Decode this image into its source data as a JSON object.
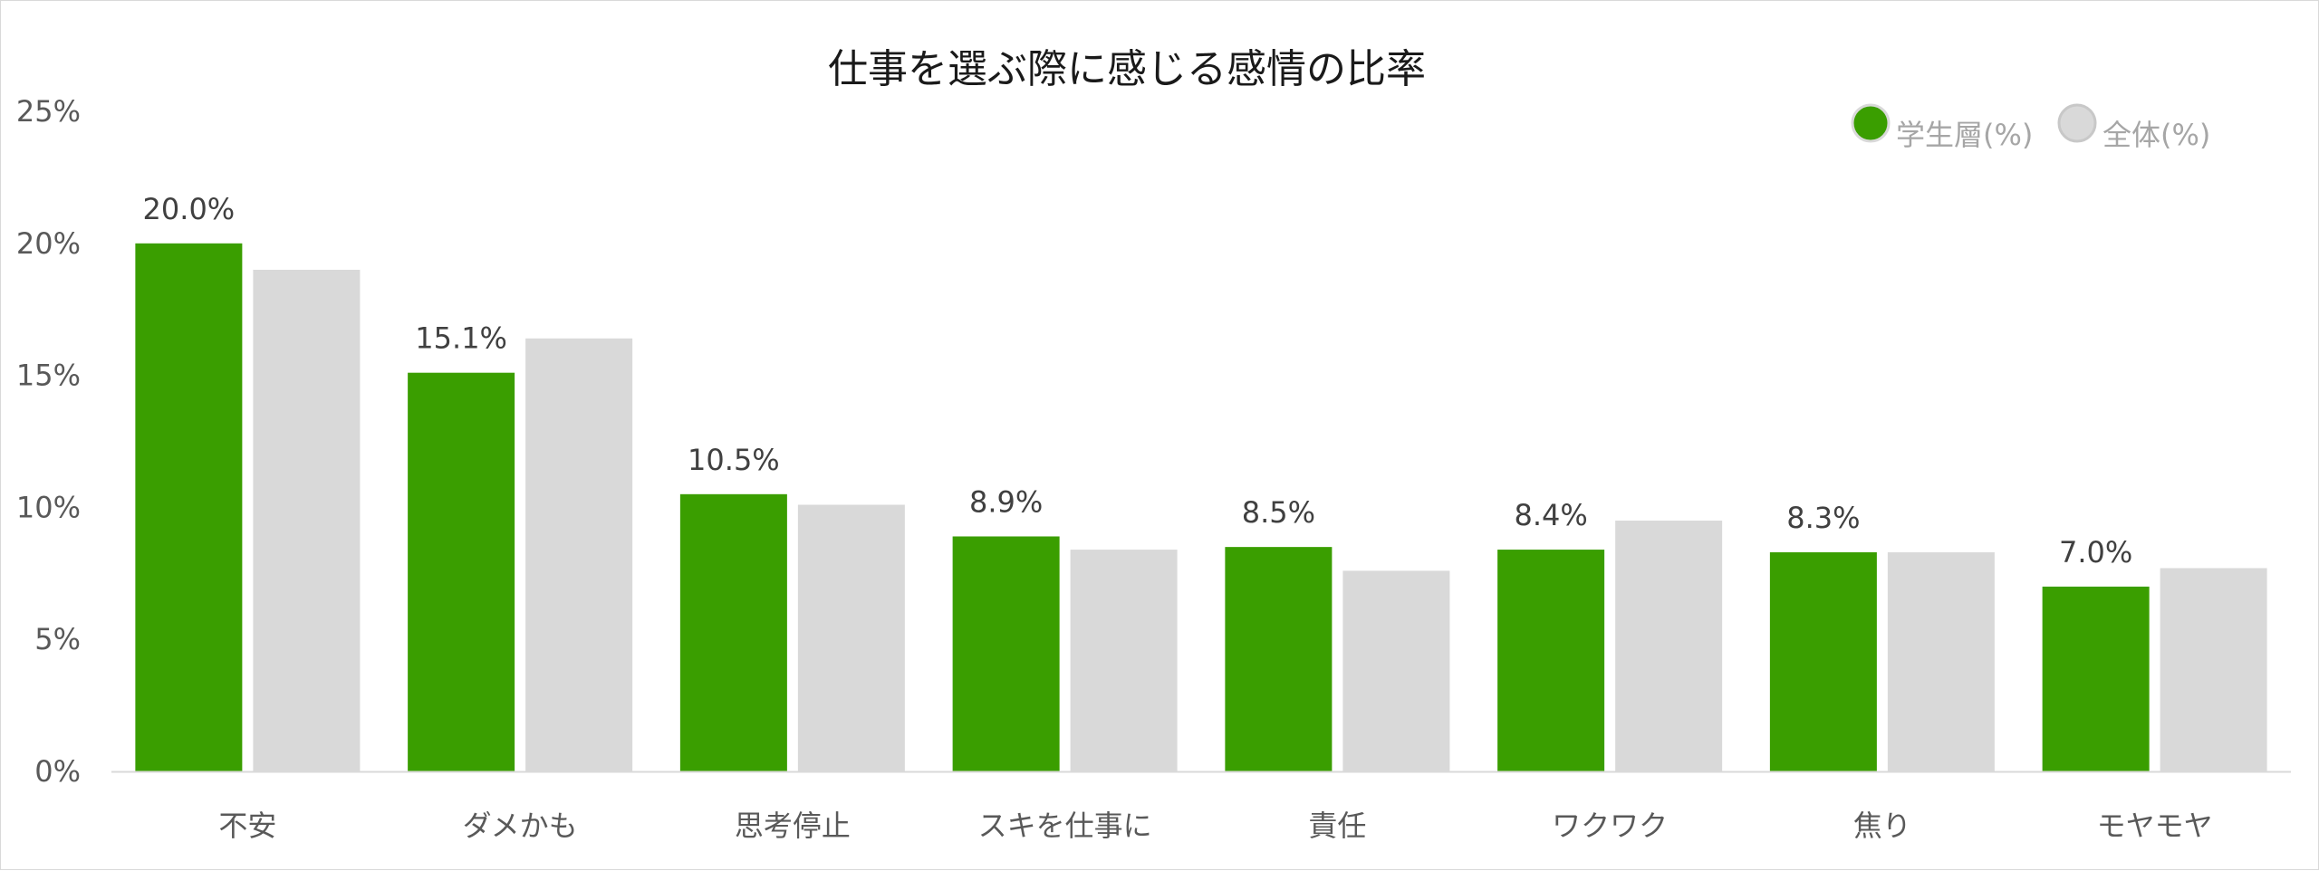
{
  "chart_data": {
    "type": "bar",
    "title": "仕事を選ぶ際に感じる感情の比率",
    "categories": [
      "不安",
      "ダメかも",
      "思考停止",
      "スキを仕事に",
      "責任",
      "ワクワク",
      "焦り",
      "モヤモヤ"
    ],
    "series": [
      {
        "name": "学生層(%)",
        "color": "#3a9e00",
        "values": [
          20.0,
          15.1,
          10.5,
          8.9,
          8.5,
          8.4,
          8.3,
          7.0
        ],
        "data_labels": [
          "20.0%",
          "15.1%",
          "10.5%",
          "8.9%",
          "8.5%",
          "8.4%",
          "8.3%",
          "7.0%"
        ]
      },
      {
        "name": "全体(%)",
        "color": "#d9d9d9",
        "values": [
          19.0,
          16.4,
          10.1,
          8.4,
          7.6,
          9.5,
          8.3,
          7.7
        ]
      }
    ],
    "ylim": [
      0,
      25
    ],
    "yticks": [
      0,
      5,
      10,
      15,
      20,
      25
    ],
    "ytick_labels": [
      "0%",
      "5%",
      "10%",
      "15%",
      "20%",
      "25%"
    ],
    "grid": false,
    "legend_position": "top-right",
    "xlabel": "",
    "ylabel": ""
  }
}
